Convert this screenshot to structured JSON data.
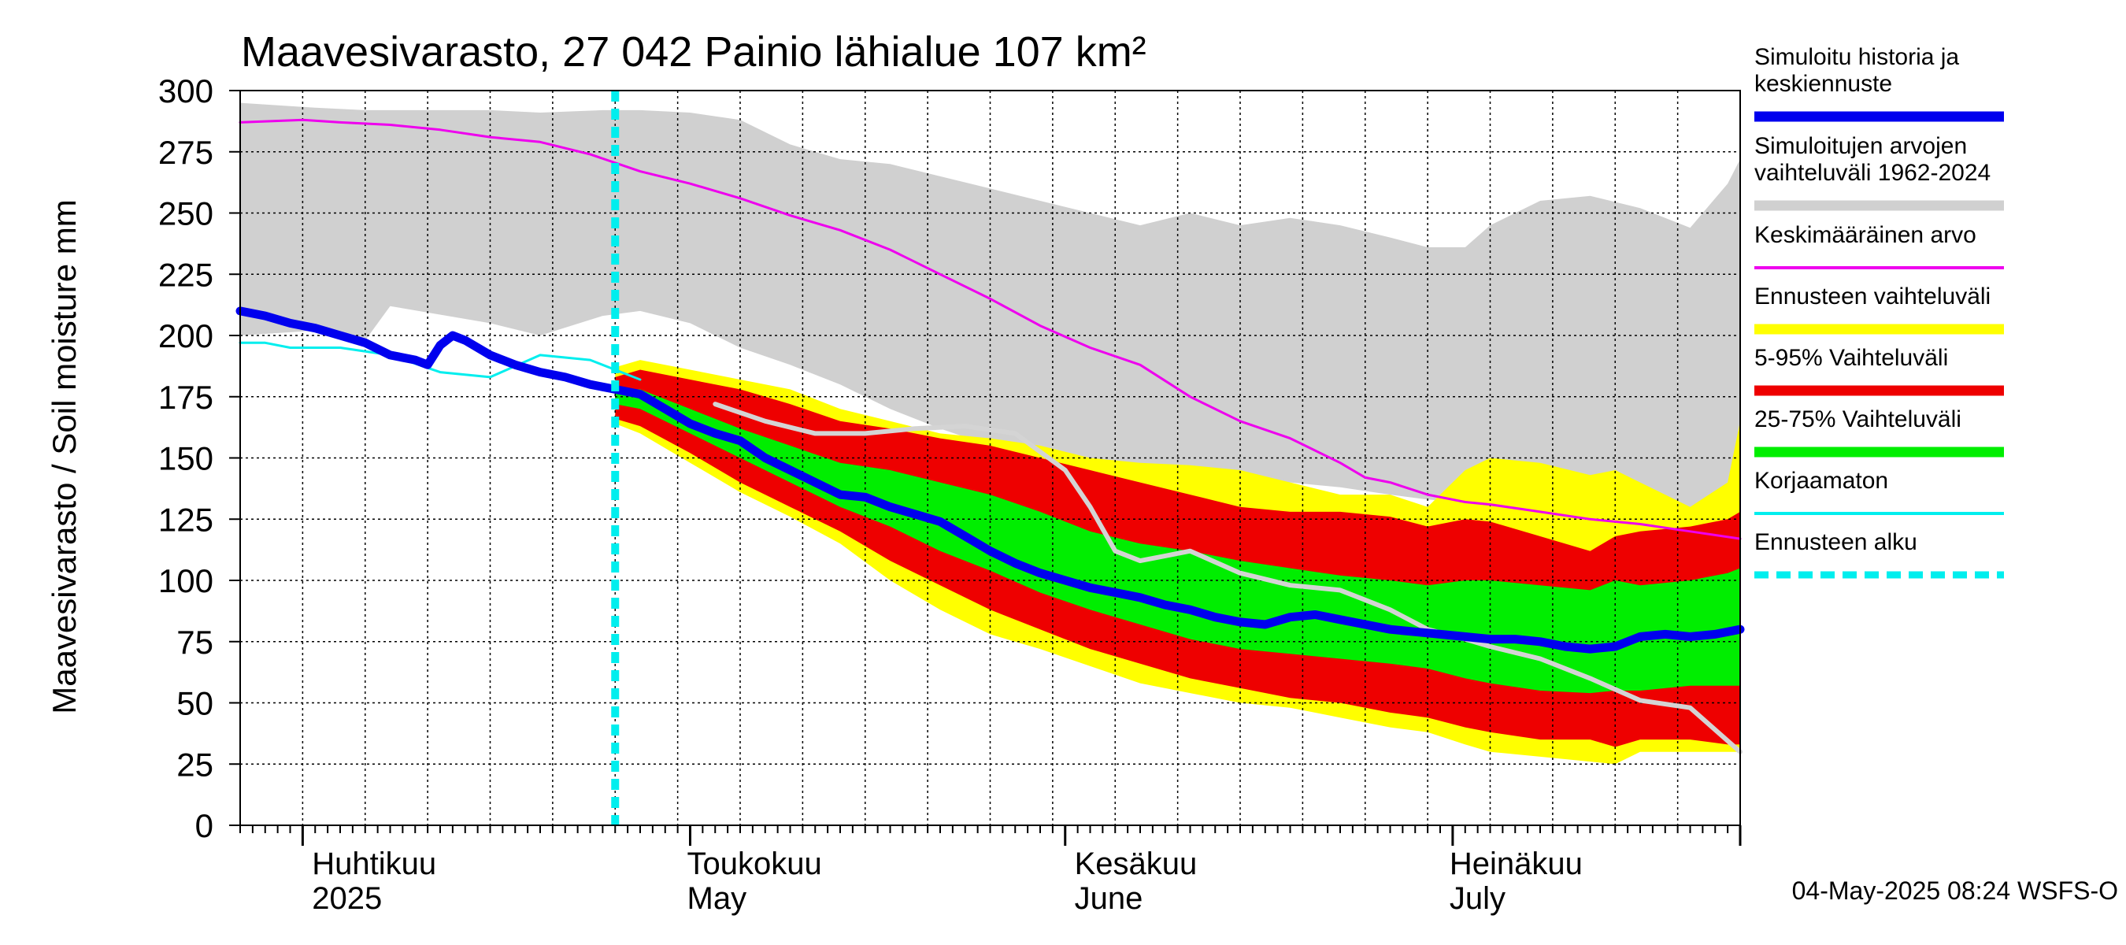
{
  "chart_data": {
    "type": "area",
    "title": "Maavesivarasto, 27 042 Painio lähialue 107 km²",
    "ylabel": "Maavesivarasto / Soil moisture   mm",
    "ylim": [
      0,
      300
    ],
    "yticks": [
      "0",
      "25",
      "50",
      "75",
      "100",
      "125",
      "150",
      "175",
      "200",
      "225",
      "250",
      "275",
      "300"
    ],
    "x_range_days": [
      0,
      120
    ],
    "x_start_date": "2025-03-26",
    "months": [
      {
        "day": 6,
        "fi": "Huhtikuu",
        "en": "2025"
      },
      {
        "day": 36,
        "fi": "Toukokuu",
        "en": "May"
      },
      {
        "day": 67,
        "fi": "Kesäkuu",
        "en": "June"
      },
      {
        "day": 97,
        "fi": "Heinäkuu",
        "en": "July"
      }
    ],
    "forecast_start_day": 30,
    "legend": [
      {
        "label": "Simuloitu historia ja keskiennuste",
        "color": "#0000ee",
        "style": "thick"
      },
      {
        "label": "Simuloitujen arvojen vaihteluväli 1962-2024",
        "color": "#d0d0d0",
        "style": "thick"
      },
      {
        "label": "Keskimääräinen arvo",
        "color": "#ee00ee",
        "style": "thin"
      },
      {
        "label": "Ennusteen vaihteluväli",
        "color": "#ffff00",
        "style": "thick"
      },
      {
        "label": "5-95% Vaihteluväli",
        "color": "#ee0000",
        "style": "thick"
      },
      {
        "label": "25-75% Vaihteluväli",
        "color": "#00ee00",
        "style": "thick"
      },
      {
        "label": "Korjaamaton",
        "color": "#00eeee",
        "style": "thin"
      },
      {
        "label": "Ennusteen alku",
        "color": "#00eeee",
        "style": "dashed"
      }
    ],
    "series": [
      {
        "name": "hist_range",
        "color": "#d0d0d0",
        "x": [
          0,
          6,
          10,
          12,
          20,
          24,
          29,
          32,
          36,
          40,
          44,
          48,
          52,
          56,
          60,
          64,
          68,
          72,
          76,
          80,
          84,
          88,
          92,
          95,
          98,
          100,
          104,
          108,
          112,
          116,
          119,
          120
        ],
        "upper": [
          295,
          293,
          292,
          292,
          292,
          291,
          292,
          292,
          291,
          288,
          278,
          272,
          270,
          265,
          260,
          255,
          250,
          245,
          250,
          245,
          248,
          245,
          240,
          236,
          236,
          245,
          255,
          257,
          252,
          244,
          262,
          272
        ],
        "lower": [
          200,
          202,
          198,
          212,
          205,
          200,
          208,
          210,
          205,
          195,
          188,
          180,
          170,
          162,
          155,
          150,
          148,
          145,
          142,
          140,
          140,
          138,
          135,
          133,
          132,
          130,
          130,
          128,
          130,
          128,
          140,
          150
        ]
      },
      {
        "name": "forecast_range",
        "color": "#ffff00",
        "x": [
          30,
          32,
          36,
          40,
          44,
          48,
          52,
          56,
          60,
          64,
          68,
          72,
          76,
          80,
          84,
          88,
          92,
          95,
          98,
          100,
          104,
          108,
          110,
          112,
          116,
          119,
          120
        ],
        "upper": [
          187,
          190,
          186,
          182,
          178,
          170,
          165,
          160,
          158,
          155,
          150,
          148,
          147,
          145,
          140,
          135,
          135,
          130,
          145,
          150,
          148,
          143,
          145,
          140,
          130,
          140,
          165
        ],
        "lower": [
          164,
          160,
          148,
          136,
          126,
          115,
          100,
          88,
          78,
          72,
          65,
          58,
          54,
          50,
          48,
          44,
          40,
          38,
          33,
          30,
          28,
          26,
          25,
          30,
          30,
          30,
          30
        ]
      },
      {
        "name": "p5_95",
        "color": "#ee0000",
        "x": [
          30,
          32,
          36,
          40,
          44,
          48,
          52,
          56,
          60,
          64,
          68,
          72,
          76,
          80,
          84,
          88,
          92,
          95,
          98,
          100,
          104,
          108,
          110,
          112,
          116,
          119,
          120
        ],
        "upper": [
          183,
          186,
          182,
          178,
          172,
          165,
          162,
          158,
          155,
          150,
          145,
          140,
          135,
          130,
          128,
          128,
          126,
          122,
          125,
          124,
          118,
          112,
          118,
          120,
          122,
          125,
          128
        ],
        "lower": [
          166,
          163,
          152,
          140,
          130,
          120,
          108,
          98,
          88,
          80,
          72,
          66,
          60,
          56,
          52,
          50,
          46,
          44,
          40,
          38,
          35,
          35,
          32,
          35,
          35,
          33,
          33
        ]
      },
      {
        "name": "p25_75",
        "color": "#00ee00",
        "x": [
          30,
          32,
          36,
          40,
          44,
          48,
          52,
          56,
          60,
          64,
          68,
          72,
          76,
          80,
          84,
          88,
          92,
          95,
          98,
          100,
          104,
          108,
          110,
          112,
          116,
          119,
          120
        ],
        "upper": [
          178,
          178,
          170,
          162,
          155,
          148,
          145,
          140,
          135,
          128,
          120,
          115,
          112,
          108,
          105,
          102,
          100,
          98,
          100,
          100,
          98,
          96,
          100,
          98,
          100,
          103,
          105
        ],
        "lower": [
          172,
          170,
          160,
          150,
          140,
          130,
          122,
          112,
          104,
          95,
          88,
          82,
          76,
          72,
          70,
          68,
          66,
          64,
          60,
          58,
          55,
          54,
          55,
          55,
          57,
          57,
          57
        ]
      },
      {
        "name": "Keskimääräinen arvo",
        "color": "#ee00ee",
        "x": [
          0,
          5,
          8,
          12,
          16,
          20,
          24,
          28,
          32,
          36,
          40,
          44,
          48,
          52,
          56,
          60,
          64,
          68,
          72,
          76,
          80,
          84,
          88,
          90,
          92,
          95,
          98,
          100,
          104,
          108,
          112,
          116,
          120
        ],
        "y": [
          287,
          288,
          287,
          286,
          284,
          281,
          279,
          274,
          267,
          262,
          256,
          249,
          243,
          235,
          225,
          215,
          204,
          195,
          188,
          175,
          165,
          158,
          148,
          142,
          140,
          135,
          132,
          131,
          128,
          125,
          123,
          120,
          117
        ]
      },
      {
        "name": "Simuloitu (harmaa)",
        "color": "#d4d4d4",
        "x": [
          38,
          42,
          46,
          50,
          54,
          58,
          62,
          66,
          68,
          70,
          72,
          74,
          76,
          80,
          84,
          88,
          92,
          95,
          98,
          100,
          104,
          108,
          112,
          116,
          120
        ],
        "y": [
          172,
          165,
          160,
          160,
          162,
          163,
          160,
          145,
          130,
          112,
          108,
          110,
          112,
          103,
          98,
          96,
          88,
          80,
          76,
          73,
          68,
          60,
          51,
          48,
          30
        ]
      },
      {
        "name": "Korjaamaton",
        "color": "#00eeee",
        "x": [
          0,
          2,
          4,
          8,
          12,
          16,
          20,
          24,
          28,
          32
        ],
        "y": [
          197,
          197,
          195,
          195,
          192,
          185,
          183,
          192,
          190,
          182
        ]
      },
      {
        "name": "Simuloitu historia ja keskiennuste",
        "color": "#0000ee",
        "x": [
          0,
          2,
          4,
          6,
          8,
          10,
          12,
          14,
          15,
          16,
          17,
          18,
          20,
          22,
          24,
          26,
          28,
          30,
          32,
          34,
          36,
          38,
          40,
          42,
          44,
          46,
          48,
          50,
          52,
          54,
          56,
          58,
          60,
          62,
          64,
          66,
          68,
          70,
          72,
          74,
          76,
          78,
          80,
          82,
          84,
          86,
          88,
          90,
          92,
          94,
          96,
          98,
          100,
          102,
          104,
          106,
          108,
          110,
          112,
          114,
          116,
          118,
          120
        ],
        "y": [
          210,
          208,
          205,
          203,
          200,
          197,
          192,
          190,
          188,
          196,
          200,
          198,
          192,
          188,
          185,
          183,
          180,
          178,
          176,
          170,
          164,
          160,
          157,
          150,
          145,
          140,
          135,
          134,
          130,
          127,
          124,
          118,
          112,
          107,
          103,
          100,
          97,
          95,
          93,
          90,
          88,
          85,
          83,
          82,
          85,
          86,
          84,
          82,
          80,
          79,
          78,
          77,
          76,
          76,
          75,
          73,
          72,
          73,
          77,
          78,
          77,
          78,
          80
        ]
      }
    ],
    "timestamp": "04-May-2025 08:24 WSFS-O"
  }
}
